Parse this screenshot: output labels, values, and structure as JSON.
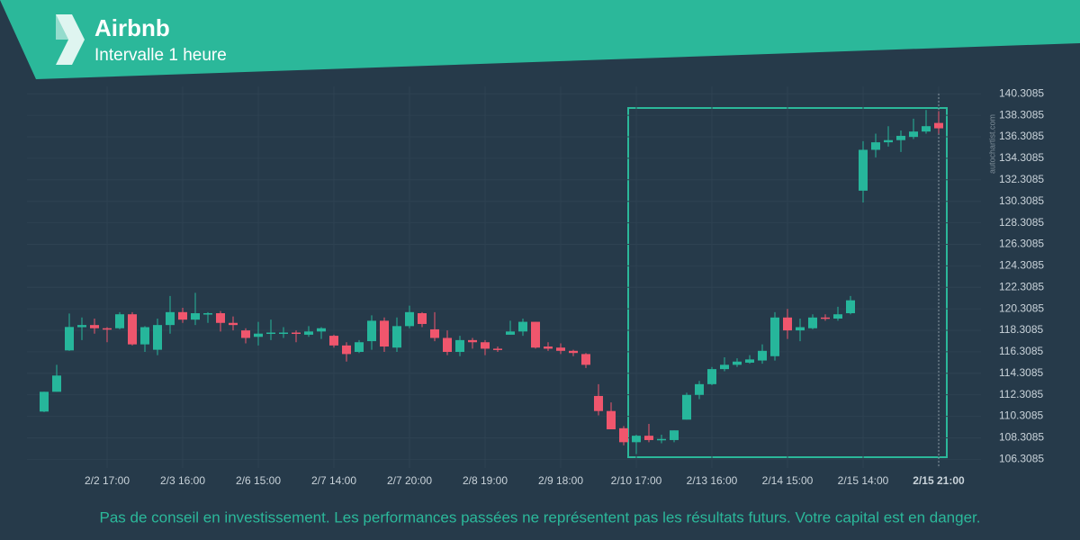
{
  "chart_data": {
    "type": "candlestick",
    "title": "Airbnb",
    "subtitle": "Intervalle 1 heure",
    "watermark": "autochartist.com",
    "disclaimer": "Pas de conseil en investissement. Les performances passées ne représentent pas les résultats futurs. Votre capital est en danger.",
    "categories": [
      null,
      null,
      null,
      null,
      null,
      "2/2 17:00",
      null,
      null,
      null,
      null,
      null,
      "2/3 16:00",
      null,
      null,
      null,
      null,
      null,
      "2/6 15:00",
      null,
      null,
      null,
      null,
      null,
      "2/7 14:00",
      null,
      null,
      null,
      null,
      null,
      "2/7 20:00",
      null,
      null,
      null,
      null,
      null,
      "2/8 19:00",
      null,
      null,
      null,
      null,
      null,
      "2/9 18:00",
      null,
      null,
      null,
      null,
      null,
      "2/10 17:00",
      null,
      null,
      null,
      null,
      null,
      "2/13 16:00",
      null,
      null,
      null,
      null,
      null,
      "2/14 15:00",
      null,
      null,
      null,
      null,
      null,
      "2/15 14:00",
      null,
      null,
      null,
      null,
      null,
      "2/15 21:00"
    ],
    "open": [
      110.75,
      112.59,
      116.44,
      118.6,
      118.8,
      118.5,
      118.5,
      119.8,
      117.0,
      116.5,
      118.8,
      120.0,
      119.3,
      119.8,
      119.9,
      119.0,
      118.3,
      117.7,
      118.0,
      118.0,
      118.1,
      117.9,
      118.2,
      117.8,
      116.9,
      116.3,
      117.3,
      119.2,
      116.7,
      118.7,
      119.9,
      118.4,
      117.6,
      116.3,
      117.4,
      117.2,
      116.6,
      117.9,
      118.2,
      119.1,
      116.8,
      116.7,
      116.4,
      116.1,
      112.2,
      110.8,
      109.2,
      107.9,
      108.5,
      108.1,
      108.1,
      110.0,
      112.3,
      113.3,
      114.7,
      115.1,
      115.3,
      115.5,
      115.9,
      119.5,
      118.3,
      118.5,
      119.5,
      119.4,
      119.9,
      131.3,
      135.1,
      135.8,
      136.0,
      136.3,
      136.8,
      137.6
    ],
    "high": [
      112.6,
      115.1,
      119.87,
      119.5,
      119.4,
      118.6,
      120.0,
      120.0,
      118.7,
      119.4,
      121.5,
      120.4,
      121.8,
      120.0,
      120.1,
      119.6,
      118.5,
      119.1,
      119.3,
      118.6,
      118.3,
      118.7,
      118.6,
      117.9,
      117.2,
      117.4,
      119.7,
      119.5,
      119.5,
      120.6,
      120.0,
      120.0,
      118.3,
      117.8,
      117.6,
      117.4,
      116.8,
      119.2,
      119.4,
      119.1,
      117.2,
      117.1,
      116.5,
      116.2,
      113.3,
      111.6,
      109.4,
      108.6,
      109.6,
      108.6,
      109.0,
      112.5,
      113.6,
      114.9,
      115.8,
      115.7,
      116.0,
      117.0,
      120.0,
      120.3,
      119.4,
      119.8,
      119.8,
      120.5,
      121.5,
      135.9,
      136.6,
      137.3,
      136.9,
      138.0,
      138.8,
      138.7
    ],
    "low": [
      110.7,
      112.6,
      116.4,
      117.4,
      118.0,
      117.2,
      118.4,
      116.9,
      116.3,
      116.0,
      118.0,
      119.0,
      118.8,
      119.0,
      118.2,
      118.3,
      117.1,
      116.9,
      117.4,
      117.6,
      117.2,
      117.7,
      117.5,
      116.7,
      115.4,
      116.2,
      116.5,
      116.3,
      116.3,
      118.5,
      118.6,
      117.3,
      116.0,
      115.9,
      116.6,
      116.0,
      116.3,
      117.9,
      117.8,
      116.6,
      116.4,
      116.1,
      115.9,
      114.8,
      110.4,
      109.1,
      107.6,
      106.8,
      107.9,
      107.8,
      107.9,
      110.0,
      111.9,
      113.2,
      114.5,
      114.9,
      115.2,
      115.2,
      115.5,
      117.5,
      117.3,
      118.4,
      119.2,
      119.2,
      119.8,
      130.2,
      134.4,
      135.4,
      134.9,
      136.1,
      136.6,
      136.6
    ],
    "close": [
      112.59,
      114.1,
      118.62,
      118.8,
      118.5,
      118.4,
      119.8,
      117.0,
      118.6,
      118.8,
      120.0,
      119.3,
      119.9,
      119.9,
      119.0,
      118.8,
      117.6,
      118.0,
      118.1,
      118.1,
      118.0,
      118.2,
      118.5,
      116.9,
      116.1,
      117.2,
      119.2,
      116.8,
      118.7,
      120.0,
      118.9,
      117.6,
      116.3,
      117.4,
      117.2,
      116.6,
      116.5,
      118.2,
      119.1,
      116.7,
      116.6,
      116.4,
      116.2,
      115.1,
      110.8,
      109.1,
      107.9,
      108.5,
      108.1,
      108.2,
      109.0,
      112.3,
      113.3,
      114.7,
      115.1,
      115.4,
      115.6,
      116.4,
      119.5,
      118.3,
      118.6,
      119.5,
      119.4,
      119.8,
      121.1,
      135.1,
      135.8,
      136.0,
      136.4,
      136.8,
      137.3,
      137.1
    ],
    "up_color": "#26b69b",
    "down_color": "#f0566d",
    "ylim": [
      105.5,
      141
    ],
    "yticks": [
      106.3085,
      108.3085,
      110.3085,
      112.3085,
      114.3085,
      116.3085,
      118.3085,
      120.3085,
      122.3085,
      124.3085,
      126.3085,
      128.3085,
      130.3085,
      132.3085,
      134.3085,
      136.3085,
      138.3085,
      140.3085
    ],
    "grid": true
  }
}
